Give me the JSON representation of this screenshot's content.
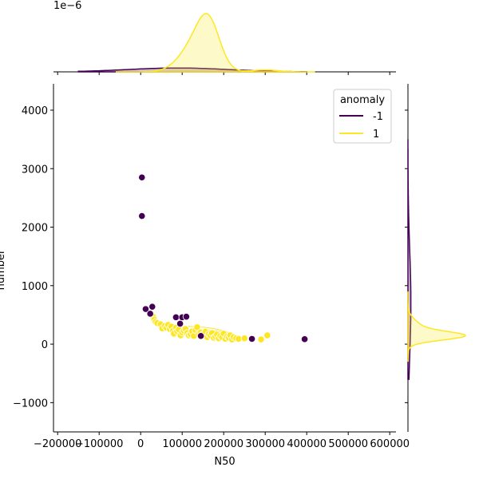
{
  "chart_data": {
    "type": "scatter",
    "variant": "jointplot-kde-marginals",
    "title": "",
    "xlabel": "N50",
    "ylabel": "number",
    "xlim": [
      -210000,
      615000
    ],
    "ylim": [
      -1500,
      4450
    ],
    "x_ticks": [
      -200000,
      -100000,
      0,
      100000,
      200000,
      300000,
      400000,
      500000,
      600000
    ],
    "x_tick_labels": [
      "−200000",
      "−100000",
      "0",
      "100000",
      "200000",
      "300000",
      "400000",
      "500000",
      "600000"
    ],
    "y_ticks": [
      -1000,
      0,
      1000,
      2000,
      3000,
      4000
    ],
    "y_tick_labels": [
      "−1000",
      "0",
      "1000",
      "2000",
      "3000",
      "4000"
    ],
    "grid": false,
    "legend": {
      "title": "anomaly",
      "placement": "top-right",
      "entries": [
        {
          "label": "-1",
          "color": "#440154"
        },
        {
          "label": "1",
          "color": "#fde725"
        }
      ]
    },
    "top_marginal_offset_label": "1e−6",
    "series": [
      {
        "name": "-1",
        "color": "#440154",
        "points": [
          [
            3000,
            2850
          ],
          [
            3000,
            2190
          ],
          [
            12000,
            600
          ],
          [
            23000,
            520
          ],
          [
            28000,
            640
          ],
          [
            85000,
            460
          ],
          [
            95000,
            350
          ],
          [
            100000,
            460
          ],
          [
            110000,
            470
          ],
          [
            145000,
            140
          ],
          [
            268000,
            90
          ],
          [
            395000,
            85
          ]
        ]
      },
      {
        "name": "1",
        "color": "#fde725",
        "points": [
          [
            30000,
            470
          ],
          [
            33000,
            420
          ],
          [
            36000,
            380
          ],
          [
            40000,
            360
          ],
          [
            48000,
            340
          ],
          [
            52000,
            270
          ],
          [
            58000,
            310
          ],
          [
            62000,
            280
          ],
          [
            66000,
            330
          ],
          [
            70000,
            260
          ],
          [
            74000,
            300
          ],
          [
            78000,
            230
          ],
          [
            80000,
            180
          ],
          [
            85000,
            280
          ],
          [
            88000,
            220
          ],
          [
            92000,
            250
          ],
          [
            96000,
            150
          ],
          [
            100000,
            200
          ],
          [
            104000,
            230
          ],
          [
            108000,
            260
          ],
          [
            112000,
            190
          ],
          [
            116000,
            150
          ],
          [
            120000,
            170
          ],
          [
            124000,
            220
          ],
          [
            128000,
            140
          ],
          [
            132000,
            240
          ],
          [
            136000,
            290
          ],
          [
            140000,
            180
          ],
          [
            144000,
            200
          ],
          [
            148000,
            160
          ],
          [
            152000,
            140
          ],
          [
            156000,
            210
          ],
          [
            160000,
            120
          ],
          [
            164000,
            170
          ],
          [
            168000,
            150
          ],
          [
            172000,
            190
          ],
          [
            176000,
            110
          ],
          [
            180000,
            130
          ],
          [
            184000,
            160
          ],
          [
            188000,
            100
          ],
          [
            192000,
            140
          ],
          [
            196000,
            120
          ],
          [
            200000,
            180
          ],
          [
            204000,
            90
          ],
          [
            208000,
            130
          ],
          [
            212000,
            110
          ],
          [
            216000,
            150
          ],
          [
            220000,
            80
          ],
          [
            224000,
            120
          ],
          [
            230000,
            100
          ],
          [
            236000,
            90
          ],
          [
            250000,
            100
          ],
          [
            290000,
            80
          ],
          [
            305000,
            150
          ]
        ]
      }
    ],
    "marginal_x_peaks": [
      {
        "series": "1",
        "center": 160000
      },
      {
        "series": "-1",
        "center": 100000
      }
    ],
    "marginal_y_peaks": [
      {
        "series": "1",
        "center": 150
      },
      {
        "series": "-1",
        "center": 600
      }
    ]
  }
}
